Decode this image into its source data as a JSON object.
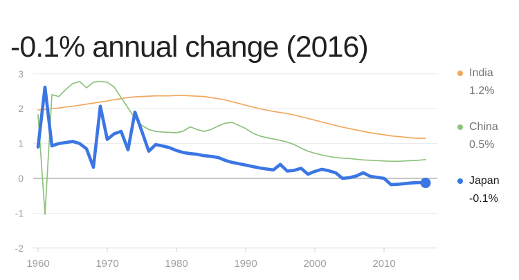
{
  "title": "-0.1% annual change (2016)",
  "chart_data": {
    "type": "line",
    "title": "-0.1% annual change (2016)",
    "xlabel": "",
    "ylabel": "",
    "ylim": [
      -2,
      3
    ],
    "xlim": [
      1959.3,
      2017.7
    ],
    "grid": true,
    "legend_position": "right",
    "y_ticks": [
      "3",
      "2",
      "1",
      "0",
      "-1",
      "-2"
    ],
    "y_tick_values": [
      3,
      2,
      1,
      0,
      -1,
      -2
    ],
    "x_ticks": [
      "1960",
      "1970",
      "1980",
      "1990",
      "2000",
      "2010"
    ],
    "x_tick_values": [
      1960,
      1970,
      1980,
      1990,
      2000,
      2010
    ],
    "x_start": 1960,
    "x_step": 1,
    "series": [
      {
        "name": "India",
        "legend_value": "1.2%",
        "color": "#f2a85f",
        "highlighted": false,
        "end_dot": false,
        "values": [
          1.96,
          1.98,
          2.0,
          2.02,
          2.05,
          2.07,
          2.1,
          2.13,
          2.16,
          2.19,
          2.22,
          2.26,
          2.29,
          2.32,
          2.34,
          2.35,
          2.36,
          2.37,
          2.37,
          2.37,
          2.38,
          2.38,
          2.37,
          2.36,
          2.35,
          2.32,
          2.29,
          2.25,
          2.2,
          2.15,
          2.1,
          2.05,
          2.0,
          1.96,
          1.92,
          1.89,
          1.86,
          1.82,
          1.77,
          1.72,
          1.67,
          1.62,
          1.57,
          1.52,
          1.47,
          1.43,
          1.39,
          1.35,
          1.31,
          1.28,
          1.25,
          1.22,
          1.2,
          1.18,
          1.16,
          1.15,
          1.15
        ]
      },
      {
        "name": "China",
        "legend_value": "0.5%",
        "color": "#8fc27d",
        "highlighted": false,
        "end_dot": false,
        "values": [
          1.83,
          -1.03,
          2.4,
          2.35,
          2.55,
          2.72,
          2.78,
          2.6,
          2.76,
          2.78,
          2.76,
          2.62,
          2.32,
          2.02,
          1.73,
          1.52,
          1.4,
          1.35,
          1.33,
          1.32,
          1.31,
          1.36,
          1.48,
          1.4,
          1.35,
          1.4,
          1.5,
          1.58,
          1.61,
          1.52,
          1.43,
          1.3,
          1.22,
          1.17,
          1.13,
          1.09,
          1.04,
          0.97,
          0.87,
          0.78,
          0.72,
          0.67,
          0.63,
          0.6,
          0.58,
          0.57,
          0.55,
          0.53,
          0.52,
          0.51,
          0.5,
          0.49,
          0.49,
          0.5,
          0.51,
          0.52,
          0.54
        ]
      },
      {
        "name": "Japan",
        "legend_value": "-0.1%",
        "color": "#3b76e3",
        "highlighted": true,
        "end_dot": true,
        "values": [
          0.9,
          2.62,
          0.93,
          1.0,
          1.03,
          1.06,
          1.0,
          0.85,
          0.32,
          2.07,
          1.12,
          1.28,
          1.35,
          0.82,
          1.9,
          1.35,
          0.78,
          0.97,
          0.93,
          0.88,
          0.8,
          0.74,
          0.71,
          0.69,
          0.65,
          0.63,
          0.6,
          0.52,
          0.46,
          0.42,
          0.38,
          0.34,
          0.3,
          0.27,
          0.24,
          0.4,
          0.21,
          0.23,
          0.29,
          0.12,
          0.2,
          0.26,
          0.22,
          0.16,
          0.0,
          0.02,
          0.07,
          0.16,
          0.06,
          0.03,
          0.0,
          -0.18,
          -0.17,
          -0.15,
          -0.13,
          -0.12,
          -0.13
        ]
      }
    ]
  },
  "colors": {
    "title_text": "#212121",
    "axis_label": "#9e9e9e",
    "gridline": "#e9e9e9",
    "zero_line": "#b3b3b3",
    "bottom_line": "#dcdcdc",
    "tick_mark": "#cfcfcf",
    "legend_text_muted": "#757575",
    "legend_text_highlighted": "#1c1c1c",
    "background": "#ffffff"
  }
}
